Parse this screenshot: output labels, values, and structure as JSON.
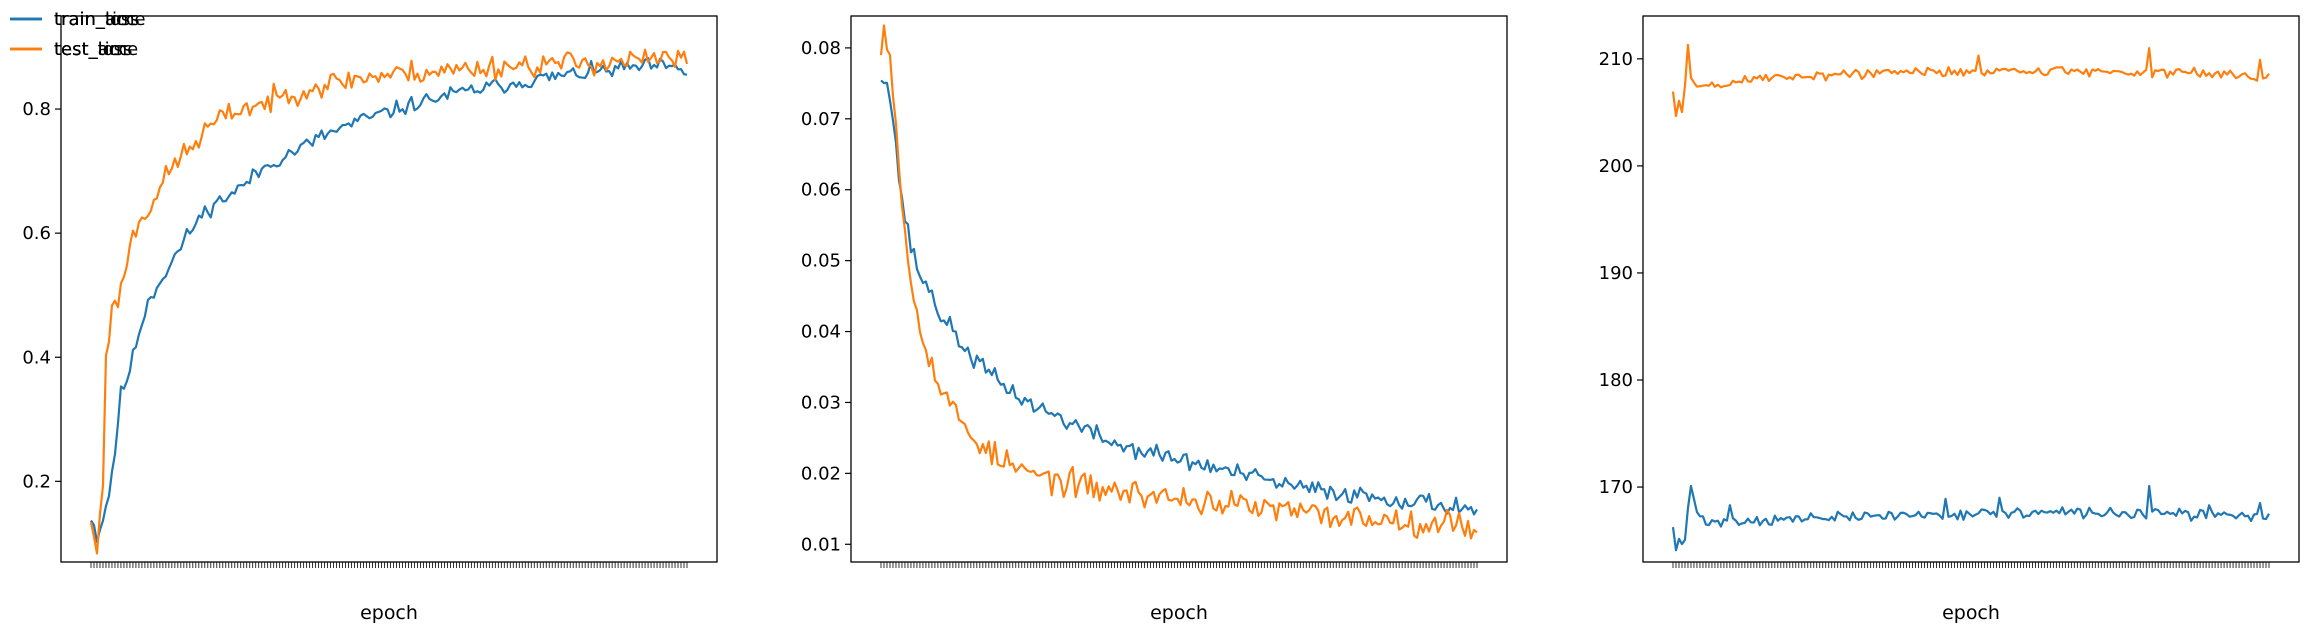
{
  "colors": {
    "blue": "#1f77b4",
    "orange": "#ff7f0e"
  },
  "chart_data": [
    {
      "type": "line",
      "xlabel": "epoch",
      "ylabel": "",
      "x_range": [
        1,
        200
      ],
      "ylim": [
        0.07,
        0.95
      ],
      "yticks": [
        0.2,
        0.4,
        0.6,
        0.8
      ],
      "ytick_labels": [
        "0.2",
        "0.4",
        "0.6",
        "0.8"
      ],
      "legend_position": "upper left",
      "grid": false,
      "series": [
        {
          "name": "train_acc",
          "color": "#1f77b4",
          "keypoints": [
            [
              1,
              0.145
            ],
            [
              3,
              0.11
            ],
            [
              5,
              0.14
            ],
            [
              7,
              0.18
            ],
            [
              9,
              0.25
            ],
            [
              11,
              0.34
            ],
            [
              14,
              0.38
            ],
            [
              17,
              0.44
            ],
            [
              20,
              0.49
            ],
            [
              25,
              0.53
            ],
            [
              30,
              0.57
            ],
            [
              35,
              0.61
            ],
            [
              40,
              0.64
            ],
            [
              50,
              0.67
            ],
            [
              60,
              0.71
            ],
            [
              70,
              0.735
            ],
            [
              80,
              0.76
            ],
            [
              90,
              0.78
            ],
            [
              100,
              0.795
            ],
            [
              110,
              0.81
            ],
            [
              120,
              0.822
            ],
            [
              130,
              0.832
            ],
            [
              140,
              0.84
            ],
            [
              150,
              0.848
            ],
            [
              160,
              0.855
            ],
            [
              170,
              0.86
            ],
            [
              180,
              0.866
            ],
            [
              190,
              0.87
            ],
            [
              200,
              0.86
            ]
          ],
          "noise": 0.012,
          "seed": 11
        },
        {
          "name": "test_acc",
          "color": "#ff7f0e",
          "keypoints": [
            [
              1,
              0.14
            ],
            [
              2,
              0.1
            ],
            [
              3,
              0.09
            ],
            [
              5,
              0.2
            ],
            [
              6,
              0.41
            ],
            [
              8,
              0.47
            ],
            [
              11,
              0.51
            ],
            [
              14,
              0.58
            ],
            [
              17,
              0.62
            ],
            [
              20,
              0.64
            ],
            [
              25,
              0.68
            ],
            [
              30,
              0.72
            ],
            [
              35,
              0.74
            ],
            [
              40,
              0.77
            ],
            [
              50,
              0.8
            ],
            [
              60,
              0.81
            ],
            [
              70,
              0.83
            ],
            [
              80,
              0.84
            ],
            [
              90,
              0.85
            ],
            [
              100,
              0.855
            ],
            [
              110,
              0.86
            ],
            [
              120,
              0.862
            ],
            [
              130,
              0.866
            ],
            [
              140,
              0.87
            ],
            [
              150,
              0.872
            ],
            [
              160,
              0.874
            ],
            [
              170,
              0.876
            ],
            [
              180,
              0.878
            ],
            [
              190,
              0.88
            ],
            [
              200,
              0.88
            ]
          ],
          "noise": 0.018,
          "seed": 23
        }
      ]
    },
    {
      "type": "line",
      "xlabel": "epoch",
      "ylabel": "",
      "x_range": [
        1,
        200
      ],
      "ylim": [
        0.0075,
        0.0845
      ],
      "yticks": [
        0.01,
        0.02,
        0.03,
        0.04,
        0.05,
        0.06,
        0.07,
        0.08
      ],
      "ytick_labels": [
        "0.01",
        "0.02",
        "0.03",
        "0.04",
        "0.05",
        "0.06",
        "0.07",
        "0.08"
      ],
      "legend_position": "upper right",
      "grid": false,
      "series": [
        {
          "name": "train_loss",
          "color": "#1f77b4",
          "keypoints": [
            [
              1,
              0.076
            ],
            [
              2,
              0.0765
            ],
            [
              3,
              0.0755
            ],
            [
              5,
              0.07
            ],
            [
              7,
              0.062
            ],
            [
              9,
              0.056
            ],
            [
              11,
              0.052
            ],
            [
              14,
              0.048
            ],
            [
              17,
              0.046
            ],
            [
              20,
              0.043
            ],
            [
              25,
              0.04
            ],
            [
              30,
              0.037
            ],
            [
              35,
              0.035
            ],
            [
              40,
              0.033
            ],
            [
              50,
              0.03
            ],
            [
              60,
              0.028
            ],
            [
              70,
              0.026
            ],
            [
              80,
              0.024
            ],
            [
              90,
              0.023
            ],
            [
              100,
              0.022
            ],
            [
              110,
              0.021
            ],
            [
              120,
              0.02
            ],
            [
              130,
              0.019
            ],
            [
              140,
              0.018
            ],
            [
              150,
              0.0175
            ],
            [
              160,
              0.017
            ],
            [
              170,
              0.0165
            ],
            [
              180,
              0.016
            ],
            [
              190,
              0.0155
            ],
            [
              200,
              0.015
            ]
          ],
          "noise": 0.0012,
          "seed": 37
        },
        {
          "name": "test_loss",
          "color": "#ff7f0e",
          "keypoints": [
            [
              1,
              0.081
            ],
            [
              2,
              0.083
            ],
            [
              4,
              0.079
            ],
            [
              6,
              0.07
            ],
            [
              8,
              0.058
            ],
            [
              10,
              0.05
            ],
            [
              12,
              0.045
            ],
            [
              15,
              0.04
            ],
            [
              18,
              0.035
            ],
            [
              21,
              0.032
            ],
            [
              25,
              0.029
            ],
            [
              30,
              0.026
            ],
            [
              35,
              0.024
            ],
            [
              40,
              0.022
            ],
            [
              50,
              0.02
            ],
            [
              60,
              0.019
            ],
            [
              70,
              0.018
            ],
            [
              80,
              0.0175
            ],
            [
              90,
              0.017
            ],
            [
              100,
              0.0165
            ],
            [
              110,
              0.016
            ],
            [
              120,
              0.0155
            ],
            [
              130,
              0.015
            ],
            [
              140,
              0.0145
            ],
            [
              150,
              0.014
            ],
            [
              160,
              0.0138
            ],
            [
              170,
              0.0135
            ],
            [
              180,
              0.0132
            ],
            [
              190,
              0.013
            ],
            [
              200,
              0.0125
            ]
          ],
          "noise": 0.0018,
          "seed": 53
        }
      ]
    },
    {
      "type": "line",
      "xlabel": "epoch",
      "ylabel": "",
      "x_range": [
        1,
        200
      ],
      "ylim": [
        163.0,
        214.0
      ],
      "yticks": [
        170,
        180,
        190,
        200,
        210
      ],
      "ytick_labels": [
        "170",
        "180",
        "190",
        "200",
        "210"
      ],
      "legend_position": "center right",
      "grid": false,
      "series": [
        {
          "name": "train_time",
          "color": "#1f77b4",
          "keypoints": [
            [
              1,
              166.3
            ],
            [
              2,
              164.0
            ],
            [
              3,
              164.8
            ],
            [
              5,
              165.0
            ],
            [
              6,
              168.0
            ],
            [
              7,
              170.0
            ],
            [
              9,
              167.5
            ],
            [
              12,
              166.8
            ],
            [
              20,
              166.8
            ],
            [
              40,
              167.0
            ],
            [
              60,
              167.2
            ],
            [
              80,
              167.4
            ],
            [
              100,
              167.5
            ],
            [
              120,
              167.6
            ],
            [
              140,
              167.6
            ],
            [
              160,
              167.5
            ],
            [
              180,
              167.4
            ],
            [
              200,
              167.3
            ]
          ],
          "noise": 0.45,
          "seed": 71,
          "spikes": [
            [
              7,
              170.1
            ],
            [
              20,
              168.3
            ],
            [
              92,
              168.9
            ],
            [
              110,
              169.0
            ],
            [
              160,
              170.1
            ],
            [
              180,
              168.3
            ],
            [
              197,
              168.5
            ]
          ]
        },
        {
          "name": "test_time",
          "color": "#ff7f0e",
          "keypoints": [
            [
              1,
              207.0
            ],
            [
              2,
              204.5
            ],
            [
              3,
              206.0
            ],
            [
              4,
              205.0
            ],
            [
              5,
              207.5
            ],
            [
              6,
              211.3
            ],
            [
              7,
              208.0
            ],
            [
              9,
              207.5
            ],
            [
              15,
              207.5
            ],
            [
              30,
              208.2
            ],
            [
              60,
              208.6
            ],
            [
              90,
              208.8
            ],
            [
              120,
              208.9
            ],
            [
              150,
              208.8
            ],
            [
              180,
              208.6
            ],
            [
              200,
              208.4
            ]
          ],
          "noise": 0.45,
          "seed": 89,
          "spikes": [
            [
              6,
              211.3
            ],
            [
              103,
              210.3
            ],
            [
              160,
              211.0
            ],
            [
              197,
              209.9
            ]
          ]
        }
      ]
    }
  ]
}
